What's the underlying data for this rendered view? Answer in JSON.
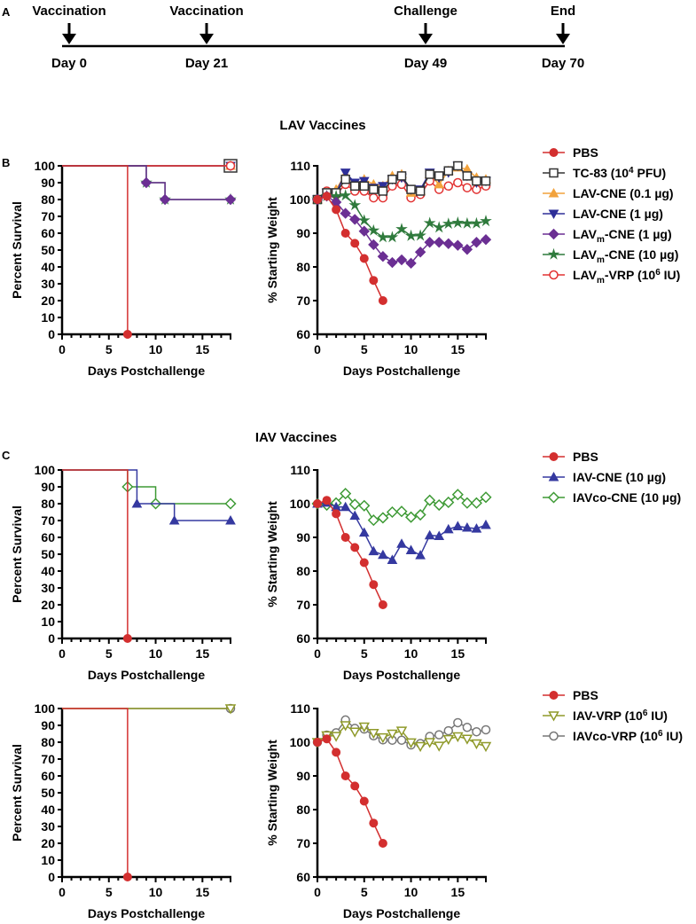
{
  "panels": {
    "a": "A",
    "b": "B",
    "c": "C"
  },
  "timeline": {
    "events": [
      {
        "label": "Vaccination",
        "day": "Day 0"
      },
      {
        "label": "Vaccination",
        "day": "Day 21"
      },
      {
        "label": "Challenge",
        "day": "Day 49"
      },
      {
        "label": "End",
        "day": "Day 70"
      }
    ]
  },
  "sections": {
    "lav": "LAV Vaccines",
    "iav": "IAV Vaccines"
  },
  "colors": {
    "PBS": "#d32f2f",
    "TC83": "#333333",
    "LAVCNE01": "#f2a23c",
    "LAVCNE1": "#2e2f98",
    "LAVmCNE1": "#6b2f93",
    "LAVmCNE10": "#2f7a3c",
    "LAVmVRP": "#e23232",
    "IAVCNE": "#3539a0",
    "IAVcoCNE": "#3e9a35",
    "IAVVRP": "#8f9a2a",
    "IAVcoVRP": "#777777"
  },
  "legends": {
    "b": [
      {
        "key": "PBS",
        "marker": "circle",
        "segments": [
          {
            "t": "PBS"
          }
        ]
      },
      {
        "key": "TC83",
        "marker": "square-open",
        "segments": [
          {
            "t": "TC-83 (10"
          },
          {
            "t": "4",
            "s": "sup"
          },
          {
            "t": " PFU)"
          }
        ]
      },
      {
        "key": "LAVCNE01",
        "marker": "triangle-up",
        "segments": [
          {
            "t": "LAV-CNE (0.1 µg)"
          }
        ]
      },
      {
        "key": "LAVCNE1",
        "marker": "triangle-down",
        "segments": [
          {
            "t": "LAV-CNE (1 µg)"
          }
        ]
      },
      {
        "key": "LAVmCNE1",
        "marker": "diamond",
        "segments": [
          {
            "t": "LAV"
          },
          {
            "t": "m",
            "s": "sub"
          },
          {
            "t": "-CNE (1 µg)"
          }
        ]
      },
      {
        "key": "LAVmCNE10",
        "marker": "star",
        "segments": [
          {
            "t": "LAV"
          },
          {
            "t": "m",
            "s": "sub"
          },
          {
            "t": "-CNE (10 µg)"
          }
        ]
      },
      {
        "key": "LAVmVRP",
        "marker": "circle-open",
        "segments": [
          {
            "t": "LAV"
          },
          {
            "t": "m",
            "s": "sub"
          },
          {
            "t": "-VRP (10"
          },
          {
            "t": "6",
            "s": "sup"
          },
          {
            "t": " IU)"
          }
        ]
      }
    ],
    "c1": [
      {
        "key": "PBS",
        "marker": "circle",
        "segments": [
          {
            "t": "PBS"
          }
        ]
      },
      {
        "key": "IAVCNE",
        "marker": "triangle-up",
        "segments": [
          {
            "t": "IAV-CNE (10 µg)"
          }
        ]
      },
      {
        "key": "IAVcoCNE",
        "marker": "diamond-open",
        "segments": [
          {
            "t": "IAVco-CNE (10 µg)"
          }
        ]
      }
    ],
    "c2": [
      {
        "key": "PBS",
        "marker": "circle",
        "segments": [
          {
            "t": "PBS"
          }
        ]
      },
      {
        "key": "IAVVRP",
        "marker": "triangle-down-open",
        "segments": [
          {
            "t": "IAV-VRP (10"
          },
          {
            "t": "6",
            "s": "sup"
          },
          {
            "t": " IU)"
          }
        ]
      },
      {
        "key": "IAVcoVRP",
        "marker": "circle-open",
        "segments": [
          {
            "t": "IAVco-VRP (10"
          },
          {
            "t": "6",
            "s": "sup"
          },
          {
            "t": " IU)"
          }
        ]
      }
    ]
  },
  "chart_data": [
    {
      "id": "b-survival",
      "type": "line",
      "step": true,
      "xlabel": "Days Postchallenge",
      "ylabel": "Percent Survival",
      "xlim": [
        0,
        18
      ],
      "ylim": [
        0,
        100
      ],
      "xticks": [
        0,
        5,
        10,
        15
      ],
      "yticks": [
        0,
        10,
        20,
        30,
        40,
        50,
        60,
        70,
        80,
        90,
        100
      ],
      "series": [
        {
          "key": "TC83",
          "x": [
            0,
            18
          ],
          "y": [
            100,
            100
          ]
        },
        {
          "key": "LAVCNE01",
          "x": [
            0,
            18
          ],
          "y": [
            100,
            100
          ]
        },
        {
          "key": "LAVCNE1",
          "x": [
            0,
            18
          ],
          "y": [
            100,
            100
          ]
        },
        {
          "key": "LAVmVRP",
          "x": [
            0,
            18
          ],
          "y": [
            100,
            100
          ]
        },
        {
          "key": "LAVmCNE10",
          "x": [
            0,
            9,
            11,
            18
          ],
          "y": [
            100,
            90,
            80,
            80
          ]
        },
        {
          "key": "LAVmCNE1",
          "x": [
            0,
            9,
            11,
            18
          ],
          "y": [
            100,
            90,
            80,
            80
          ]
        },
        {
          "key": "PBS",
          "x": [
            0,
            7
          ],
          "y": [
            100,
            0
          ]
        }
      ]
    },
    {
      "id": "b-weight",
      "type": "line",
      "xlabel": "Days Postchallenge",
      "ylabel": "% Starting Weight",
      "xlim": [
        0,
        18
      ],
      "ylim": [
        60,
        110
      ],
      "xticks": [
        0,
        5,
        10,
        15
      ],
      "yticks": [
        60,
        70,
        80,
        90,
        100,
        110
      ],
      "series": [
        {
          "key": "LAVmVRP",
          "x": [
            0,
            1,
            2,
            3,
            4,
            5,
            6,
            7,
            8,
            9,
            10,
            11,
            12,
            13,
            14,
            15,
            16,
            17,
            18
          ],
          "y": [
            100,
            102.5,
            101.5,
            104.5,
            102.5,
            102.5,
            100.5,
            100.5,
            104,
            104.5,
            100.5,
            101.5,
            105.5,
            103,
            104,
            105,
            103.5,
            103,
            104
          ]
        },
        {
          "key": "LAVCNE01",
          "x": [
            0,
            1,
            2,
            3,
            4,
            5,
            6,
            7,
            8,
            9,
            10,
            11,
            12,
            13,
            14,
            15,
            16,
            17,
            18
          ],
          "y": [
            100,
            102,
            103,
            107.5,
            104.5,
            106,
            104.5,
            104,
            107,
            107.5,
            102,
            102.5,
            107.5,
            104.5,
            108.5,
            109.5,
            109,
            106.5,
            106
          ]
        },
        {
          "key": "LAVCNE1",
          "x": [
            0,
            1,
            2,
            3,
            4,
            5,
            6,
            7,
            8,
            9,
            10,
            11,
            12,
            13,
            14,
            15,
            16,
            17,
            18
          ],
          "y": [
            100,
            102,
            102,
            108,
            105,
            105.5,
            103.5,
            104,
            106,
            106.5,
            103,
            103,
            108,
            106.5,
            108,
            110,
            107,
            105,
            105.5
          ]
        },
        {
          "key": "TC83",
          "x": [
            0,
            1,
            2,
            3,
            4,
            5,
            6,
            7,
            8,
            9,
            10,
            11,
            12,
            13,
            14,
            15,
            16,
            17,
            18
          ],
          "y": [
            100,
            102,
            102,
            106,
            104,
            104,
            103,
            102.5,
            106,
            107,
            103,
            102.5,
            107.5,
            107,
            108.5,
            110,
            107,
            105.5,
            105.5
          ]
        },
        {
          "key": "LAVmCNE10",
          "x": [
            0,
            1,
            2,
            3,
            4,
            5,
            6,
            7,
            8,
            9,
            10,
            11,
            12,
            13,
            14,
            15,
            16,
            17,
            18
          ],
          "y": [
            100,
            101,
            101,
            101.2,
            98.3,
            93.8,
            90.8,
            88.8,
            88.8,
            91.2,
            89.2,
            89.3,
            93,
            91.7,
            92.8,
            93.1,
            92.9,
            92.9,
            93.6
          ]
        },
        {
          "key": "LAVmCNE1",
          "x": [
            0,
            1,
            2,
            3,
            4,
            5,
            6,
            7,
            8,
            9,
            10,
            11,
            12,
            13,
            14,
            15,
            16,
            17,
            18
          ],
          "y": [
            100,
            101,
            99.2,
            95.9,
            94.1,
            90.6,
            86.6,
            83.1,
            81.3,
            82.1,
            81.1,
            84.4,
            87.3,
            87.3,
            86.9,
            86.4,
            85.2,
            87.3,
            88.1
          ]
        },
        {
          "key": "PBS",
          "x": [
            0,
            1,
            2,
            3,
            4,
            5,
            6,
            7
          ],
          "y": [
            100,
            101,
            97,
            90,
            87,
            82.5,
            76,
            70
          ]
        }
      ]
    },
    {
      "id": "c1-survival",
      "type": "line",
      "step": true,
      "xlabel": "Days Postchallenge",
      "ylabel": "Percent Survival",
      "xlim": [
        0,
        18
      ],
      "ylim": [
        0,
        100
      ],
      "xticks": [
        0,
        5,
        10,
        15
      ],
      "yticks": [
        0,
        10,
        20,
        30,
        40,
        50,
        60,
        70,
        80,
        90,
        100
      ],
      "series": [
        {
          "key": "IAVcoCNE",
          "x": [
            0,
            7,
            10,
            18
          ],
          "y": [
            100,
            90,
            80,
            80
          ]
        },
        {
          "key": "IAVCNE",
          "x": [
            0,
            8,
            12,
            18
          ],
          "y": [
            100,
            80,
            70,
            70
          ]
        },
        {
          "key": "PBS",
          "x": [
            0,
            7
          ],
          "y": [
            100,
            0
          ]
        }
      ]
    },
    {
      "id": "c1-weight",
      "type": "line",
      "xlabel": "Days Postchallenge",
      "ylabel": "% Starting Weight",
      "xlim": [
        0,
        18
      ],
      "ylim": [
        60,
        110
      ],
      "xticks": [
        0,
        5,
        10,
        15
      ],
      "yticks": [
        60,
        70,
        80,
        90,
        100,
        110
      ],
      "series": [
        {
          "key": "IAVcoCNE",
          "x": [
            0,
            1,
            2,
            3,
            4,
            5,
            6,
            7,
            8,
            9,
            10,
            11,
            12,
            13,
            14,
            15,
            16,
            17,
            18
          ],
          "y": [
            100,
            99.6,
            100.2,
            103,
            99.8,
            99.4,
            95.1,
            95.8,
            97.5,
            97.7,
            96,
            96.7,
            101,
            99.6,
            100.4,
            102.7,
            100.2,
            100.2,
            101.9
          ]
        },
        {
          "key": "IAVCNE",
          "x": [
            0,
            1,
            2,
            3,
            4,
            5,
            6,
            7,
            8,
            9,
            10,
            11,
            12,
            13,
            14,
            15,
            16,
            17,
            18
          ],
          "y": [
            100,
            100.3,
            99,
            99,
            96.4,
            91.4,
            85.9,
            84.8,
            83.3,
            88.1,
            86.2,
            84.7,
            90.6,
            90.4,
            92.4,
            93.3,
            92.9,
            92.6,
            93.7
          ]
        },
        {
          "key": "PBS",
          "x": [
            0,
            1,
            2,
            3,
            4,
            5,
            6,
            7
          ],
          "y": [
            100,
            101,
            97,
            90,
            87,
            82.5,
            76,
            70
          ]
        }
      ]
    },
    {
      "id": "c2-survival",
      "type": "line",
      "step": true,
      "xlabel": "Days Postchallenge",
      "ylabel": "Percent Survival",
      "xlim": [
        0,
        18
      ],
      "ylim": [
        0,
        100
      ],
      "xticks": [
        0,
        5,
        10,
        15
      ],
      "yticks": [
        0,
        10,
        20,
        30,
        40,
        50,
        60,
        70,
        80,
        90,
        100
      ],
      "series": [
        {
          "key": "IAVcoVRP",
          "x": [
            0,
            18
          ],
          "y": [
            100,
            100
          ]
        },
        {
          "key": "IAVVRP",
          "x": [
            0,
            18
          ],
          "y": [
            100,
            100
          ]
        },
        {
          "key": "PBS",
          "x": [
            0,
            7
          ],
          "y": [
            100,
            0
          ]
        }
      ]
    },
    {
      "id": "c2-weight",
      "type": "line",
      "xlabel": "Days Postchallenge",
      "ylabel": "% Starting Weight",
      "xlim": [
        0,
        18
      ],
      "ylim": [
        60,
        110
      ],
      "xticks": [
        0,
        5,
        10,
        15
      ],
      "yticks": [
        60,
        70,
        80,
        90,
        100,
        110
      ],
      "series": [
        {
          "key": "IAVcoVRP",
          "x": [
            0,
            1,
            2,
            3,
            4,
            5,
            6,
            7,
            8,
            9,
            10,
            11,
            12,
            13,
            14,
            15,
            16,
            17,
            18
          ],
          "y": [
            100,
            102.1,
            102.8,
            106.6,
            104.1,
            103.9,
            101.9,
            100.7,
            100.6,
            100.6,
            99.2,
            99.6,
            101.7,
            102.2,
            103.4,
            105.8,
            104.4,
            103.1,
            103.7
          ]
        },
        {
          "key": "IAVVRP",
          "x": [
            0,
            1,
            2,
            3,
            4,
            5,
            6,
            7,
            8,
            9,
            10,
            11,
            12,
            13,
            14,
            15,
            16,
            17,
            18
          ],
          "y": [
            100,
            102,
            101.8,
            105,
            103.1,
            104.6,
            102.7,
            101.4,
            102.5,
            103.4,
            99.9,
            98.8,
            100,
            98.9,
            100.9,
            101.7,
            101,
            99.6,
            98.8
          ]
        },
        {
          "key": "PBS",
          "x": [
            0,
            1,
            2,
            3,
            4,
            5,
            6,
            7
          ],
          "y": [
            100,
            101,
            97,
            90,
            87,
            82.5,
            76,
            70
          ]
        }
      ]
    }
  ]
}
